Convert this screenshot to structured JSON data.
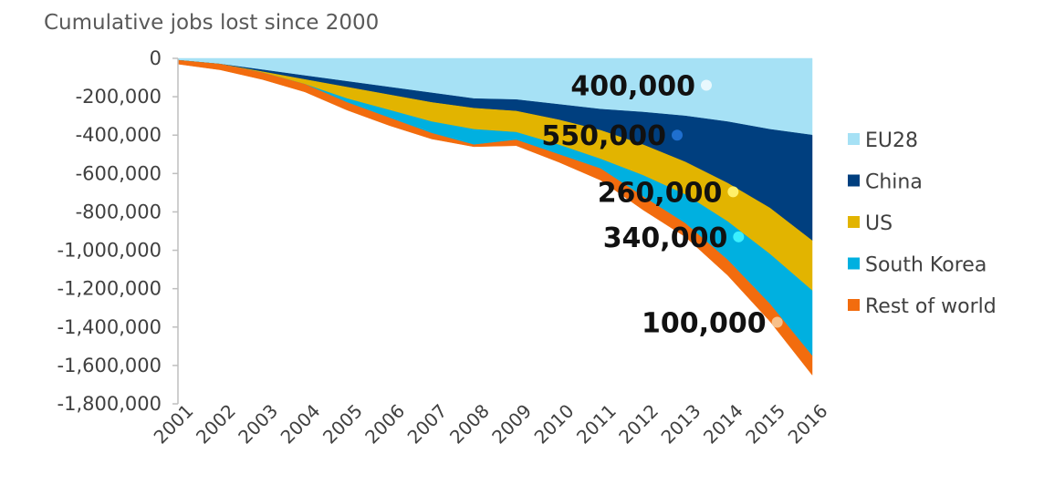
{
  "chart_data": {
    "type": "area",
    "stacked": true,
    "ylabel": "Cumulative jobs lost since 2000",
    "x": [
      "2001",
      "2002",
      "2003",
      "2004",
      "2005",
      "2006",
      "2007",
      "2008",
      "2009",
      "2010",
      "2011",
      "2012",
      "2013",
      "2014",
      "2015",
      "2016"
    ],
    "ylim": [
      -1800000,
      0
    ],
    "yticks": [
      0,
      -200000,
      -400000,
      -600000,
      -800000,
      -1000000,
      -1200000,
      -1400000,
      -1600000,
      -1800000
    ],
    "ytick_labels": [
      "0",
      "-200,000",
      "-400,000",
      "-600,000",
      "-800,000",
      "-1,000,000",
      "-1,200,000",
      "-1,400,000",
      "-1,600,000",
      "-1,800,000"
    ],
    "grid": false,
    "legend_position": "right",
    "series": [
      {
        "name": "EU28",
        "color": "#A6E1F5",
        "values": [
          -10000,
          -30000,
          -60000,
          -90000,
          -120000,
          -150000,
          -180000,
          -210000,
          -215000,
          -240000,
          -265000,
          -280000,
          -300000,
          -330000,
          -370000,
          -400000
        ]
      },
      {
        "name": "China",
        "color": "#003F7F",
        "values": [
          0,
          0,
          -10000,
          -20000,
          -30000,
          -40000,
          -50000,
          -50000,
          -60000,
          -80000,
          -110000,
          -170000,
          -240000,
          -320000,
          -410000,
          -550000
        ]
      },
      {
        "name": "US",
        "color": "#E2B400",
        "values": [
          0,
          0,
          -5000,
          -25000,
          -60000,
          -80000,
          -100000,
          -110000,
          -110000,
          -130000,
          -150000,
          -160000,
          -170000,
          -200000,
          -240000,
          -260000
        ]
      },
      {
        "name": "South Korea",
        "color": "#00B0E0",
        "values": [
          0,
          0,
          0,
          0,
          -20000,
          -40000,
          -60000,
          -80000,
          -40000,
          -50000,
          -50000,
          -110000,
          -150000,
          -200000,
          -260000,
          -340000
        ]
      },
      {
        "name": "Rest of world",
        "color": "#F26C0E",
        "values": [
          -20000,
          -30000,
          -35000,
          -40000,
          -40000,
          -40000,
          -30000,
          -10000,
          -30000,
          -40000,
          -60000,
          -70000,
          -70000,
          -80000,
          -90000,
          -100000
        ]
      }
    ],
    "annotations": [
      {
        "text": "400,000",
        "series": "EU28",
        "x": "2013",
        "y": -140000,
        "dot_color": "#E8F8FD"
      },
      {
        "text": "550,000",
        "series": "China",
        "x": "2013",
        "y": -400000,
        "dot_color": "#1F6FCF"
      },
      {
        "text": "260,000",
        "series": "US",
        "x": "2014",
        "y": -695000,
        "dot_color": "#FFF06A"
      },
      {
        "text": "340,000",
        "series": "South Korea",
        "x": "2014",
        "y": -930000,
        "dot_color": "#3AF0FF"
      },
      {
        "text": "100,000",
        "series": "Rest of world",
        "x": "2015",
        "y": -1375000,
        "dot_color": "#F7C08A"
      }
    ]
  }
}
